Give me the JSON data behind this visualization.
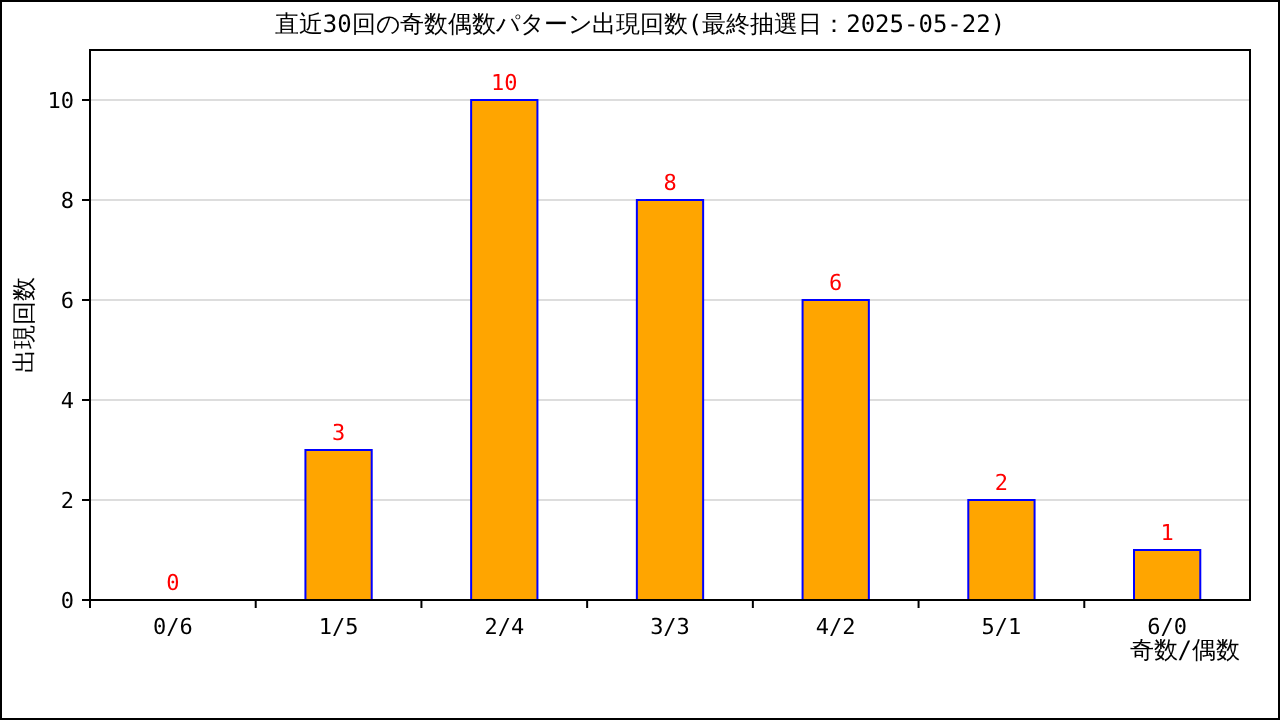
{
  "chart_data": {
    "type": "bar",
    "title": "直近30回の奇数偶数パターン出現回数(最終抽選日：2025-05-22)",
    "xlabel": "奇数/偶数",
    "ylabel": "出現回数",
    "categories": [
      "0/6",
      "1/5",
      "2/4",
      "3/3",
      "4/2",
      "5/1",
      "6/0"
    ],
    "values": [
      0,
      3,
      10,
      8,
      6,
      2,
      1
    ],
    "color": "#ffa500",
    "ylim": [
      0,
      11
    ],
    "yticks": [
      0,
      2,
      4,
      6,
      8,
      10
    ],
    "grid": "y",
    "data_labels": true
  }
}
